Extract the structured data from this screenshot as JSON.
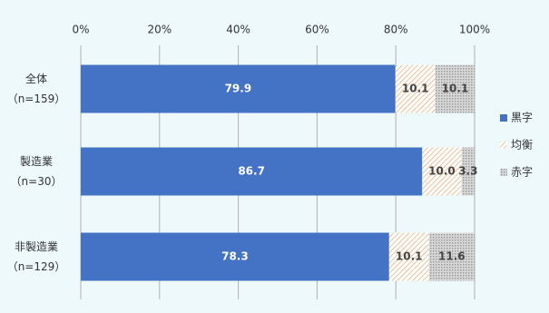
{
  "chart_data": {
    "type": "stacked-bar-horizontal",
    "categories": [
      "全体\n（n=159）",
      "製造業\n（n=30）",
      "非製造業\n（n=129）"
    ],
    "series": [
      {
        "name": "黒字",
        "color": "#4472c4",
        "pattern": "solid",
        "values": [
          79.9,
          86.7,
          78.3
        ],
        "value_labels": [
          "79.9",
          "86.7",
          "78.3"
        ]
      },
      {
        "name": "均衡",
        "color": "#e39a5a",
        "pattern": "hatch",
        "values": [
          10.1,
          10.0,
          10.1
        ],
        "value_labels": [
          "10.1",
          "10.0",
          "10.1"
        ]
      },
      {
        "name": "赤字",
        "color": "#9a9a9a",
        "pattern": "dots",
        "values": [
          10.1,
          3.3,
          11.6
        ],
        "value_labels": [
          "10.1",
          "3.3",
          "11.6"
        ]
      }
    ],
    "xlim": [
      0,
      100
    ],
    "xticks": [
      {
        "value": 0,
        "label": "0%"
      },
      {
        "value": 20,
        "label": "20%"
      },
      {
        "value": 40,
        "label": "40%"
      },
      {
        "value": 60,
        "label": "60%"
      },
      {
        "value": 80,
        "label": "80%"
      },
      {
        "value": 100,
        "label": "100%"
      }
    ],
    "grid": true,
    "legend": "right"
  }
}
